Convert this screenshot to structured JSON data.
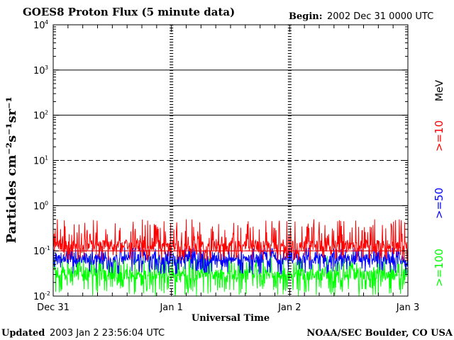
{
  "chart_data": {
    "type": "line",
    "title": "GOES8 Proton Flux (5 minute data)",
    "begin_label": "Begin:",
    "begin_value": "2002 Dec 31 0000 UTC",
    "ylabel": "Particles cm⁻²s⁻¹sr⁻¹",
    "xlabel": "Universal Time",
    "y_scale": "log",
    "ylim": [
      0.01,
      10000
    ],
    "y_ticks": [
      {
        "base": "10",
        "exp": "4",
        "value": 10000
      },
      {
        "base": "10",
        "exp": "3",
        "value": 1000
      },
      {
        "base": "10",
        "exp": "2",
        "value": 100
      },
      {
        "base": "10",
        "exp": "1",
        "value": 10
      },
      {
        "base": "10",
        "exp": "0",
        "value": 1
      },
      {
        "base": "10",
        "exp": "-1",
        "value": 0.1
      },
      {
        "base": "10",
        "exp": "-2",
        "value": 0.01
      }
    ],
    "x_unit": "days since 2002-12-31 00:00 UTC",
    "xlim": [
      0,
      3
    ],
    "x_ticks": [
      {
        "label": "Dec 31",
        "value": 0
      },
      {
        "label": "Jan 1",
        "value": 1
      },
      {
        "label": "Jan 2",
        "value": 2
      },
      {
        "label": "Jan 3",
        "value": 3
      }
    ],
    "grid": "horizontal lines at each decade; dashed at 10^1 and 10^-1",
    "threshold_line": {
      "value": 0.1,
      "color": "#ff0000"
    },
    "legend_placement": "right side, vertical",
    "legend_unit": "MeV",
    "series": [
      {
        "name": ">=10",
        "color": "#ff0000",
        "typical_range": [
          0.06,
          0.5
        ],
        "median": 0.13
      },
      {
        "name": ">=50",
        "color": "#0000ff",
        "typical_range": [
          0.03,
          0.12
        ],
        "median": 0.065
      },
      {
        "name": ">=100",
        "color": "#00ff00",
        "typical_range": [
          0.01,
          0.08
        ],
        "median": 0.03
      }
    ]
  },
  "footer": {
    "updated_label": "Updated",
    "updated_value": "2003 Jan  2 23:56:04 UTC",
    "credit": "NOAA/SEC Boulder, CO USA"
  },
  "colors": {
    "background": "#ffffff",
    "axis": "#000000"
  }
}
